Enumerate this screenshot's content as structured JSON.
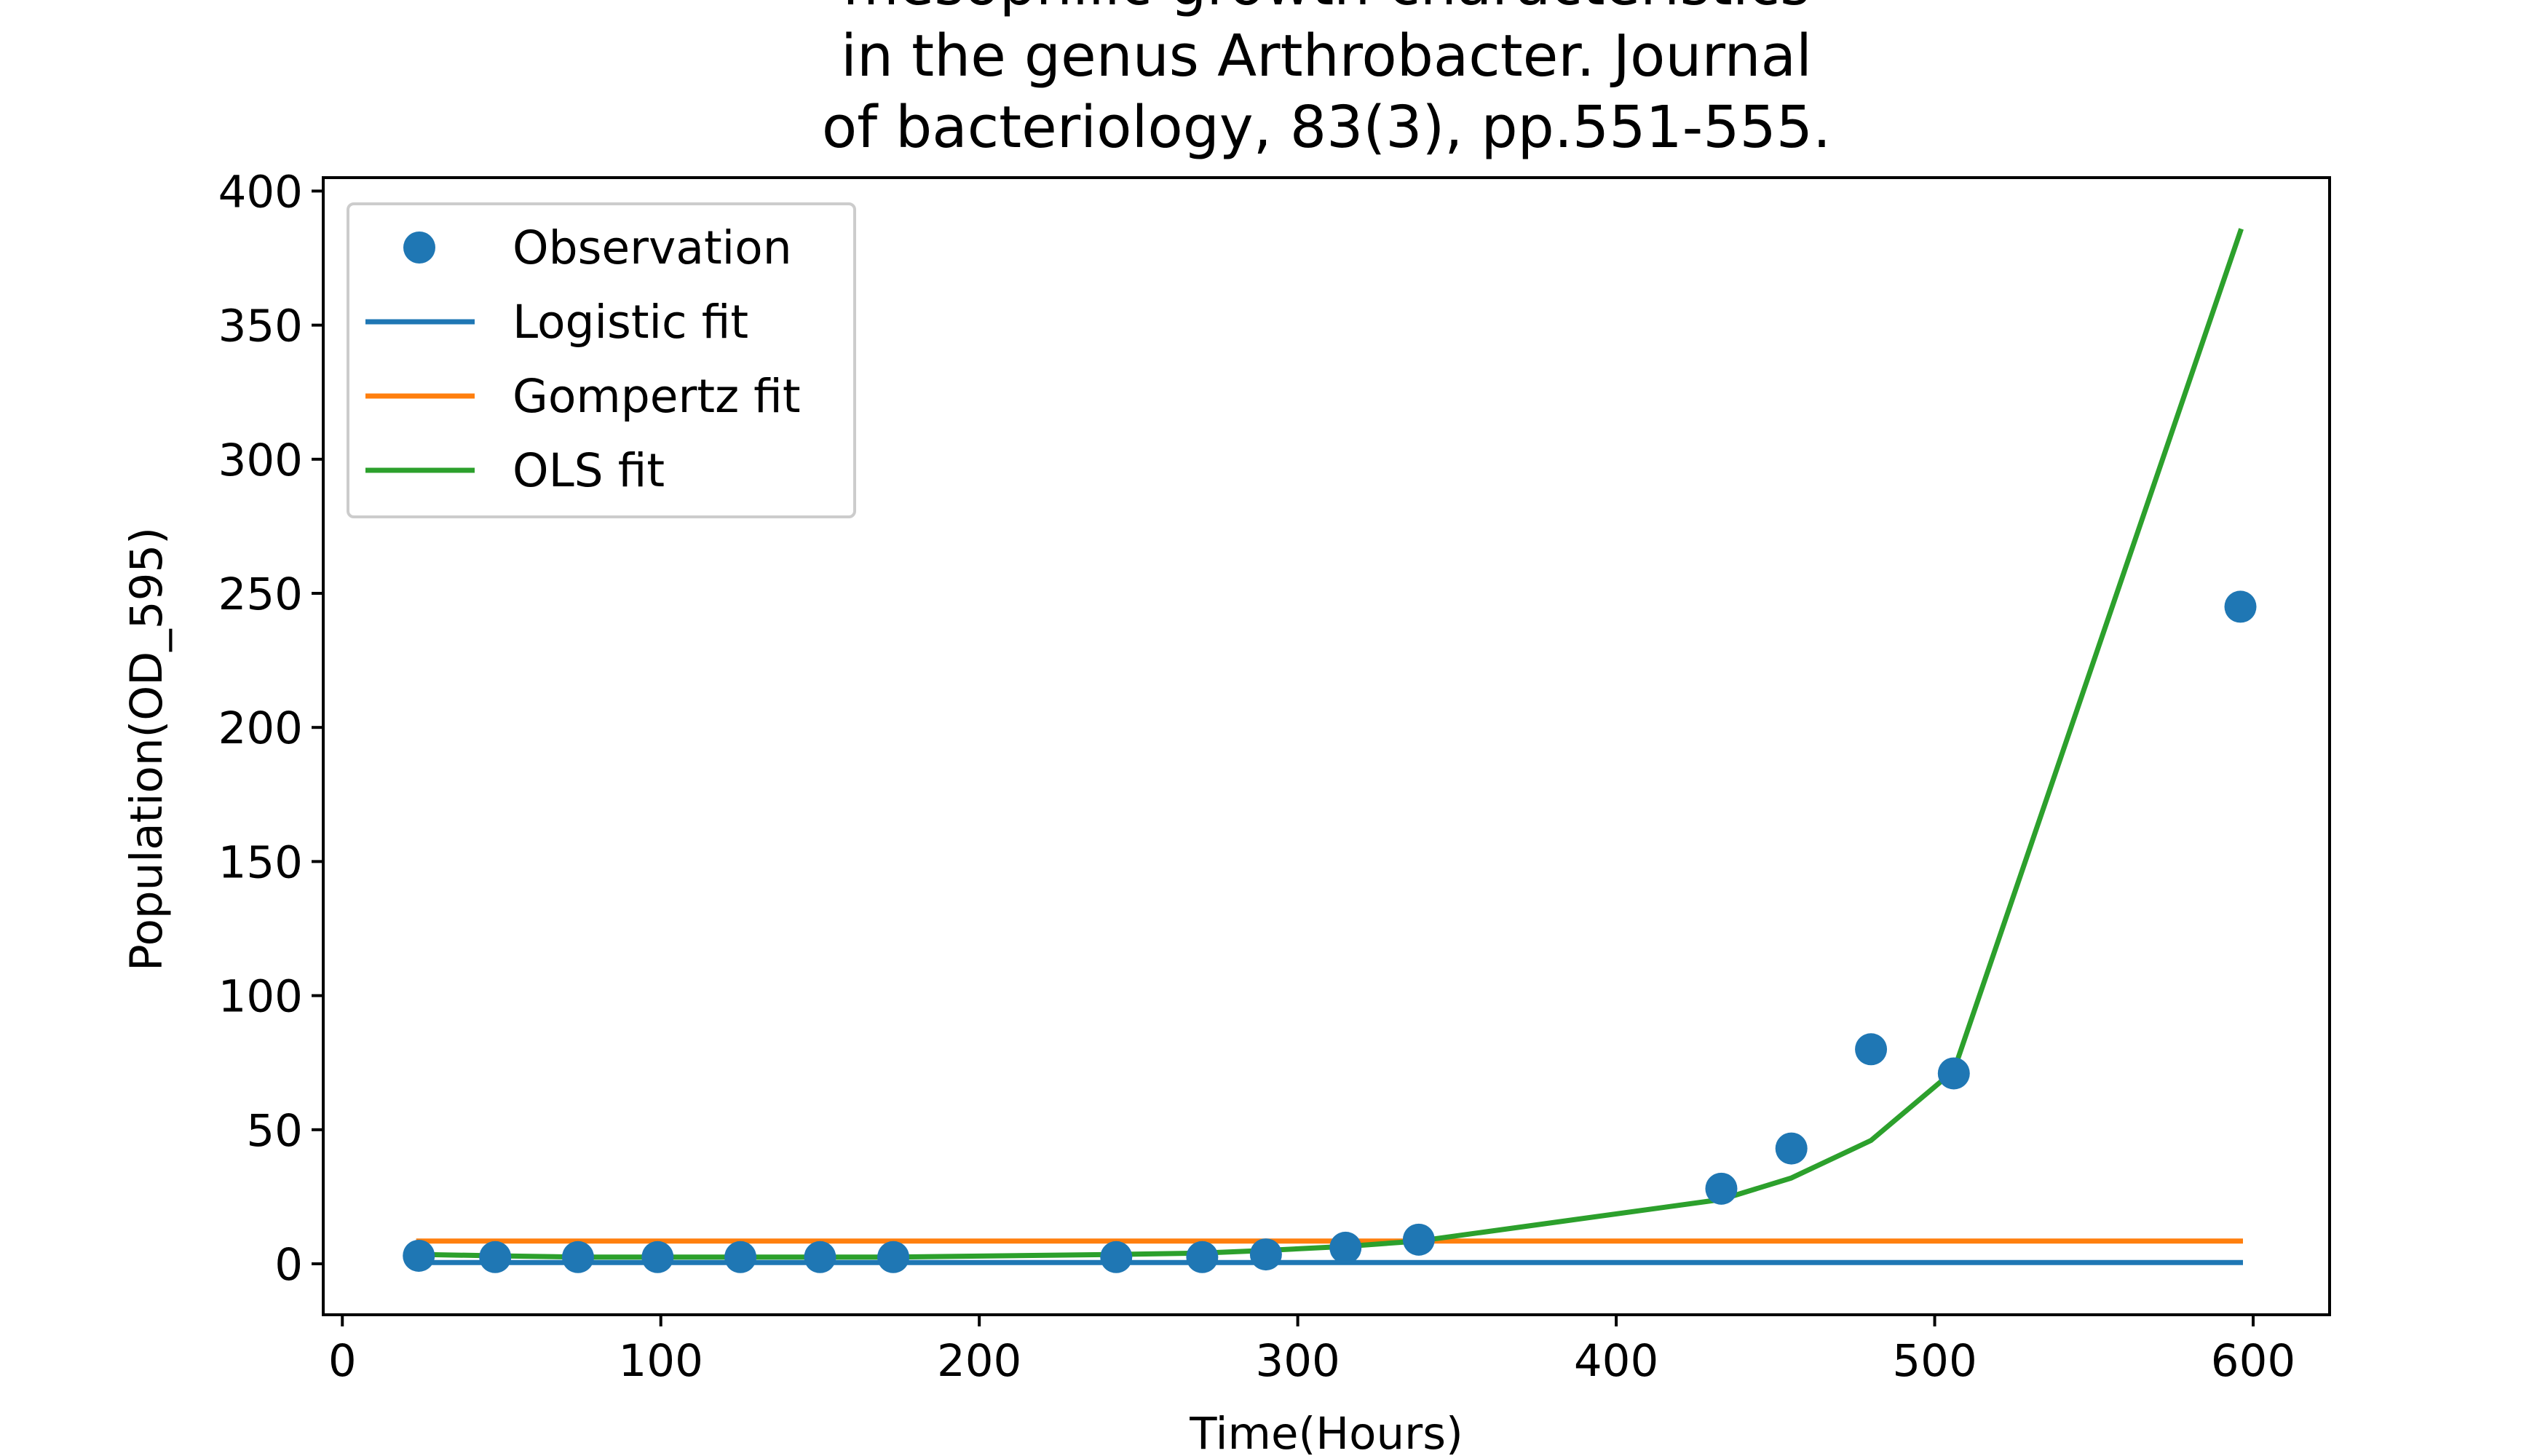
{
  "chart_data": {
    "type": "scatter",
    "title_lines": [
      "mesophilic growth characteristics",
      "in the genus Arthrobacter. Journal",
      "of bacteriology, 83(3), pp.551-555."
    ],
    "xlabel": "Time(Hours)",
    "ylabel": "Population(OD_595)",
    "xlim": [
      -6,
      624
    ],
    "ylim": [
      -19,
      405
    ],
    "x_ticks": [
      0,
      100,
      200,
      300,
      400,
      500,
      600
    ],
    "y_ticks": [
      0,
      50,
      100,
      150,
      200,
      250,
      300,
      350,
      400
    ],
    "grid": false,
    "legend_position": "top-left",
    "legend": [
      "Observation",
      "Logistic fit",
      "Gompertz fit",
      "OLS fit"
    ],
    "colors": {
      "observation": "#1f77b4",
      "logistic": "#1f77b4",
      "gompertz": "#ff7f0e",
      "ols": "#2ca02c"
    },
    "series": [
      {
        "name": "Observation",
        "kind": "scatter",
        "x": [
          24,
          48,
          74,
          99,
          125,
          150,
          173,
          243,
          270,
          290,
          315,
          338,
          433,
          455,
          480,
          506,
          596
        ],
        "y": [
          3,
          2.5,
          2.5,
          2.5,
          2.5,
          2.5,
          2.5,
          2.5,
          2.5,
          3.5,
          6,
          9,
          28,
          43,
          80,
          71,
          245
        ]
      },
      {
        "name": "Logistic fit",
        "kind": "line",
        "x": [
          24,
          596
        ],
        "y": [
          0.5,
          0.5
        ]
      },
      {
        "name": "Gompertz fit",
        "kind": "line",
        "x": [
          24,
          596
        ],
        "y": [
          8.5,
          8.5
        ]
      },
      {
        "name": "OLS fit",
        "kind": "line",
        "x": [
          24,
          48,
          74,
          99,
          125,
          150,
          173,
          243,
          270,
          290,
          315,
          338,
          433,
          455,
          480,
          506,
          596
        ],
        "y": [
          3.5,
          3,
          2.5,
          2.5,
          2.5,
          2.5,
          2.5,
          3.5,
          4,
          5,
          6.5,
          8.5,
          24,
          32,
          46,
          72,
          385
        ]
      }
    ]
  }
}
